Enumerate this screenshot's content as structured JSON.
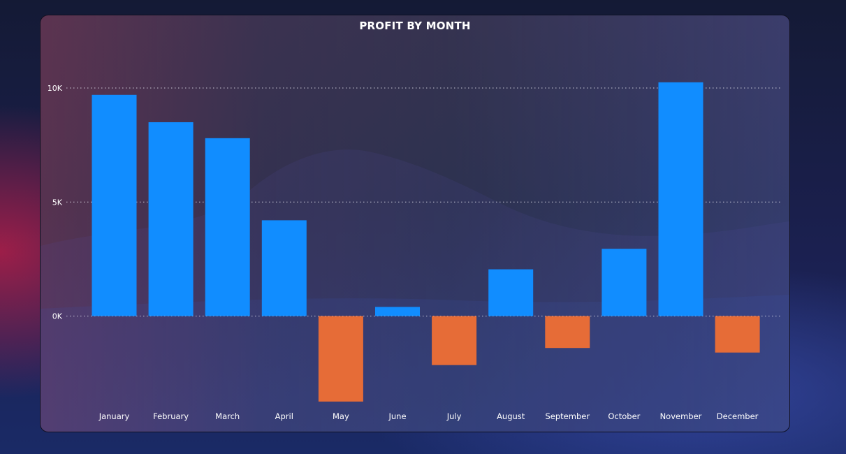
{
  "chart_data": {
    "type": "bar",
    "title": "PROFIT BY MONTH",
    "xlabel": "",
    "ylabel": "",
    "categories": [
      "January",
      "February",
      "March",
      "April",
      "May",
      "June",
      "July",
      "August",
      "September",
      "October",
      "November",
      "December"
    ],
    "values": [
      9700,
      8500,
      7800,
      4200,
      -3750,
      400,
      -2150,
      2050,
      -1400,
      2950,
      10250,
      -1600
    ],
    "ylim": [
      -4000,
      12000
    ],
    "yticks": [
      0,
      5000,
      10000
    ],
    "ytick_labels": [
      "0K",
      "5K",
      "10K"
    ],
    "grid": "horizontal dotted",
    "legend": "none",
    "colors": {
      "positive": "#118dff",
      "negative": "#e66c37"
    }
  }
}
